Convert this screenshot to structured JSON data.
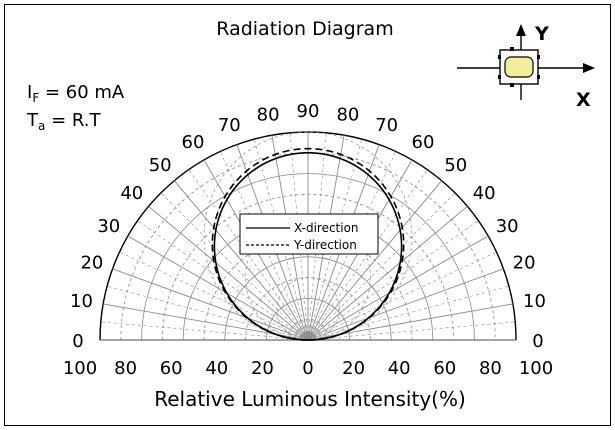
{
  "chart_data": {
    "type": "polar",
    "title": "Radiation Diagram",
    "conditions": [
      {
        "symbol": "I",
        "sub": "F",
        "text": " = 60  mA"
      },
      {
        "symbol": "T",
        "sub": "a",
        "text": " = R.T"
      }
    ],
    "xlabel": "Relative Luminous Intensity(%)",
    "x_ticks": [
      "100",
      "80",
      "60",
      "40",
      "20",
      "0",
      "20",
      "40",
      "60",
      "80",
      "100"
    ],
    "angle_labels": [
      "0",
      "10",
      "20",
      "30",
      "40",
      "50",
      "60",
      "70",
      "80",
      "90"
    ],
    "angle_range": [
      0,
      180
    ],
    "radius_range": [
      0,
      100
    ],
    "grid": true,
    "legend_position": "center",
    "series": [
      {
        "name": "X-direction",
        "style": "solid",
        "distribution": "cosine",
        "peak": 90
      },
      {
        "name": "Y-direction",
        "style": "dashed",
        "distribution": "cosine",
        "peak": 92
      }
    ],
    "axis_marks": {
      "y": "Y",
      "x": "X"
    },
    "colors": {
      "line": "#000000",
      "grid": "#8a8a8a",
      "led_fill": "#f4ee9c"
    }
  }
}
